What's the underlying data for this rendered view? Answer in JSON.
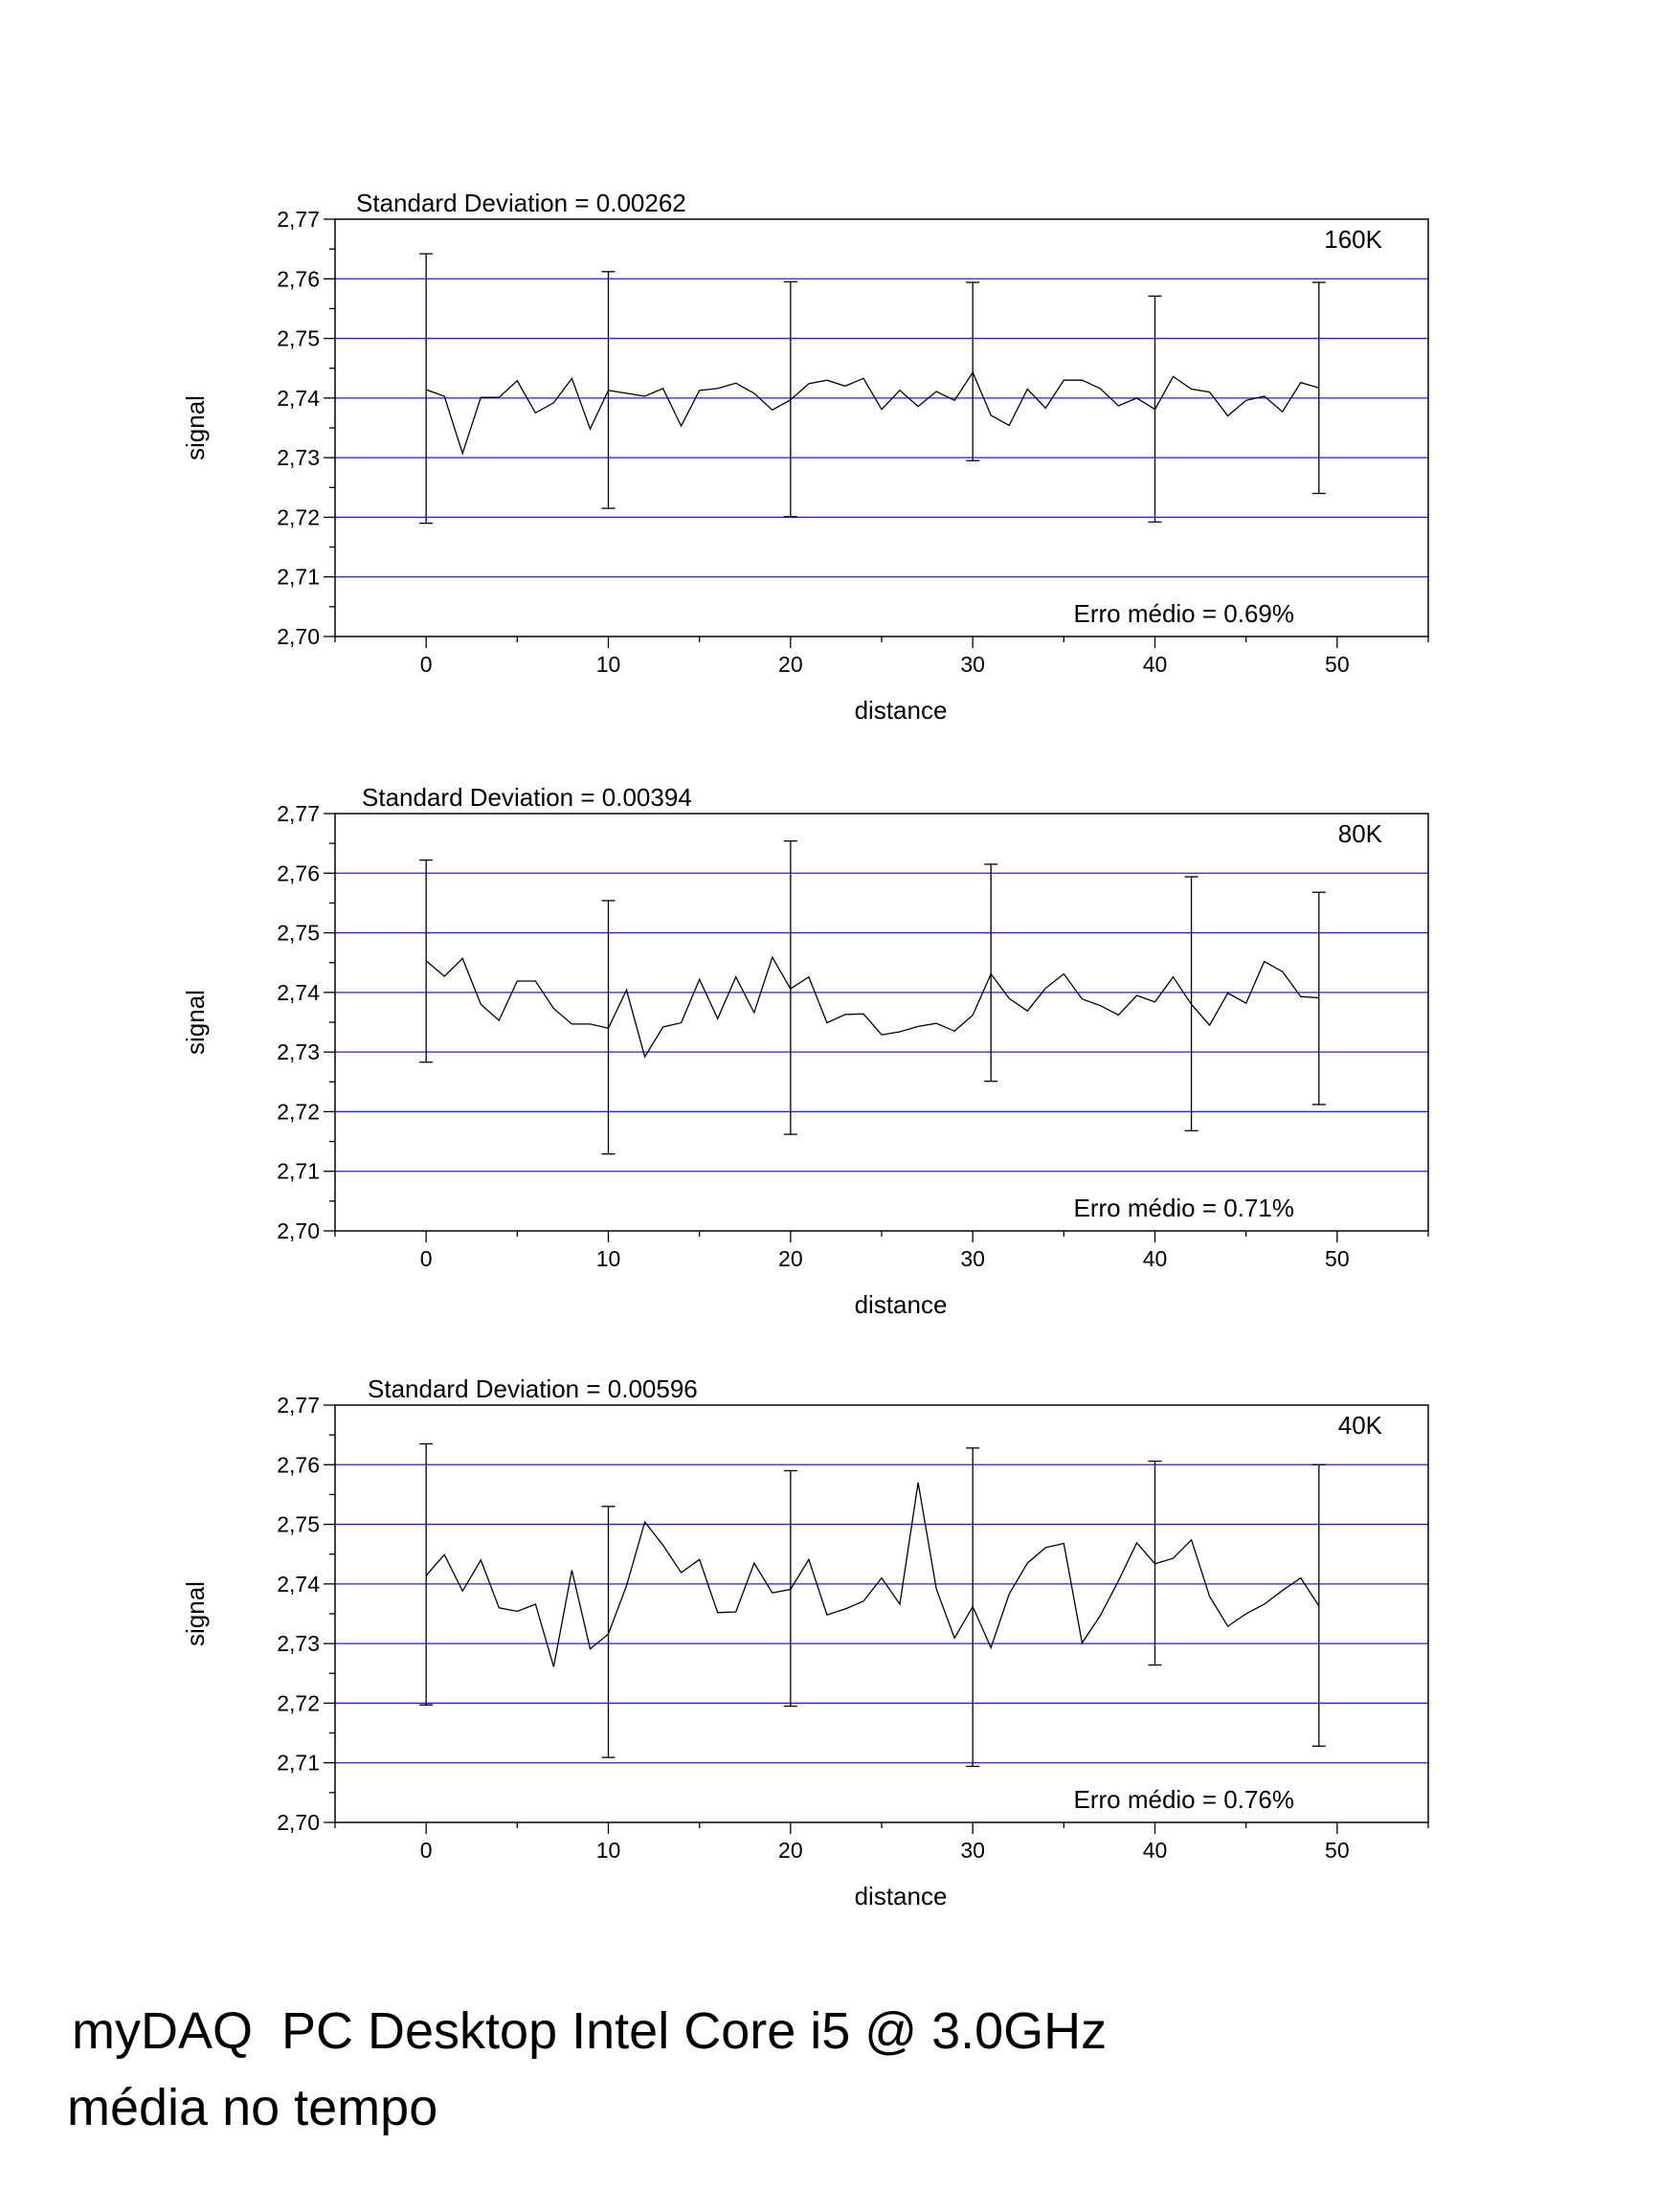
{
  "footer": {
    "line1": "myDAQ  PC Desktop Intel Core i5 @ 3.0GHz",
    "line2": "média no tempo"
  },
  "colors": {
    "grid": "#2020d0",
    "line": "#000000",
    "frame": "#000000"
  },
  "chart_data": [
    {
      "type": "line",
      "title": "Standard Deviation = 0.00262",
      "corner_label": "160K",
      "annotation": "Erro médio = 0.69%",
      "xlabel": "distance",
      "ylabel": "signal",
      "xlim": [
        -5,
        55
      ],
      "ylim": [
        2.7,
        2.77
      ],
      "xticks": [
        0,
        10,
        20,
        30,
        40,
        50
      ],
      "yticks": [
        "2,70",
        "2,71",
        "2,72",
        "2,73",
        "2,74",
        "2,75",
        "2,76",
        "2,77"
      ],
      "grid": "horizontal",
      "series": [
        {
          "x": [
            0,
            1,
            2,
            3,
            4,
            5,
            6,
            7,
            8,
            9,
            10,
            11,
            12,
            13,
            14,
            15,
            16,
            17,
            18,
            19,
            20,
            21,
            22,
            23,
            24,
            25,
            26,
            27,
            28,
            29,
            30,
            31,
            32,
            33,
            34,
            35,
            36,
            37,
            38,
            39,
            40,
            41,
            42,
            43,
            44,
            45,
            46,
            47,
            48,
            49
          ],
          "values": [
            2.7414,
            2.7403,
            2.7307,
            2.7401,
            2.7401,
            2.7429,
            2.7375,
            2.7392,
            2.7433,
            2.7348,
            2.7413,
            2.7408,
            2.7403,
            2.7416,
            2.7353,
            2.7413,
            2.7416,
            2.7425,
            2.7408,
            2.738,
            2.7397,
            2.7424,
            2.743,
            2.742,
            2.7433,
            2.7381,
            2.7413,
            2.7386,
            2.7411,
            2.7396,
            2.7443,
            2.7371,
            2.7354,
            2.7415,
            2.7383,
            2.743,
            2.743,
            2.7416,
            2.7387,
            2.74,
            2.7381,
            2.7436,
            2.7415,
            2.741,
            2.737,
            2.7396,
            2.7403,
            2.7377,
            2.7426,
            2.7417
          ]
        }
      ],
      "error_bars": [
        {
          "x": 0,
          "low": 2.719,
          "high": 2.7642
        },
        {
          "x": 10,
          "low": 2.7215,
          "high": 2.7612
        },
        {
          "x": 20,
          "low": 2.7201,
          "high": 2.7595
        },
        {
          "x": 30,
          "low": 2.7295,
          "high": 2.7594
        },
        {
          "x": 40,
          "low": 2.7192,
          "high": 2.7571
        },
        {
          "x": 49,
          "low": 2.724,
          "high": 2.7594
        }
      ]
    },
    {
      "type": "line",
      "title": "Standard Deviation = 0.00394",
      "corner_label": "80K",
      "annotation": "Erro médio = 0.71%",
      "xlabel": "distance",
      "ylabel": "signal",
      "xlim": [
        -5,
        55
      ],
      "ylim": [
        2.7,
        2.77
      ],
      "xticks": [
        0,
        10,
        20,
        30,
        40,
        50
      ],
      "yticks": [
        "2,70",
        "2,71",
        "2,72",
        "2,73",
        "2,74",
        "2,75",
        "2,76",
        "2,77"
      ],
      "grid": "horizontal",
      "series": [
        {
          "x": [
            0,
            1,
            2,
            3,
            4,
            5,
            6,
            7,
            8,
            9,
            10,
            11,
            12,
            13,
            14,
            15,
            16,
            17,
            18,
            19,
            20,
            21,
            22,
            23,
            24,
            25,
            26,
            27,
            28,
            29,
            30,
            31,
            32,
            33,
            34,
            35,
            36,
            37,
            38,
            39,
            40,
            41,
            42,
            43,
            44,
            45,
            46,
            47,
            48,
            49
          ],
          "values": [
            2.7453,
            2.7427,
            2.7457,
            2.738,
            2.7353,
            2.7419,
            2.7419,
            2.7373,
            2.7347,
            2.7347,
            2.734,
            2.7404,
            2.7292,
            2.7342,
            2.7349,
            2.7422,
            2.7356,
            2.7426,
            2.7366,
            2.7459,
            2.7406,
            2.7426,
            2.7349,
            2.7363,
            2.7364,
            2.7329,
            2.7334,
            2.7343,
            2.7348,
            2.7335,
            2.7362,
            2.7431,
            2.739,
            2.7369,
            2.7407,
            2.7431,
            2.7389,
            2.7378,
            2.7362,
            2.7395,
            2.7384,
            2.7426,
            2.738,
            2.7345,
            2.7399,
            2.7382,
            2.7452,
            2.7435,
            2.7393,
            2.7391
          ]
        }
      ],
      "error_bars": [
        {
          "x": 0,
          "low": 2.7283,
          "high": 2.7622
        },
        {
          "x": 10,
          "low": 2.7129,
          "high": 2.7554
        },
        {
          "x": 20,
          "low": 2.7162,
          "high": 2.7654
        },
        {
          "x": 31,
          "low": 2.7251,
          "high": 2.7615
        },
        {
          "x": 42,
          "low": 2.7168,
          "high": 2.7594
        },
        {
          "x": 49,
          "low": 2.7212,
          "high": 2.7568
        }
      ]
    },
    {
      "type": "line",
      "title": "Standard Deviation = 0.00596",
      "corner_label": "40K",
      "annotation": "Erro médio = 0.76%",
      "xlabel": "distance",
      "ylabel": "signal",
      "xlim": [
        -5,
        55
      ],
      "ylim": [
        2.7,
        2.77
      ],
      "xticks": [
        0,
        10,
        20,
        30,
        40,
        50
      ],
      "yticks": [
        "2,70",
        "2,71",
        "2,72",
        "2,73",
        "2,74",
        "2,75",
        "2,76",
        "2,77"
      ],
      "grid": "horizontal",
      "series": [
        {
          "x": [
            0,
            1,
            2,
            3,
            4,
            5,
            6,
            7,
            8,
            9,
            10,
            11,
            12,
            13,
            14,
            15,
            16,
            17,
            18,
            19,
            20,
            21,
            22,
            23,
            24,
            25,
            26,
            27,
            28,
            29,
            30,
            31,
            32,
            33,
            34,
            35,
            36,
            37,
            38,
            39,
            40,
            41,
            42,
            43,
            44,
            45,
            46,
            47,
            48,
            49
          ],
          "values": [
            2.7414,
            2.7449,
            2.7388,
            2.744,
            2.736,
            2.7354,
            2.7366,
            2.7261,
            2.7423,
            2.7291,
            2.7316,
            2.7397,
            2.7504,
            2.7465,
            2.7419,
            2.7441,
            2.7352,
            2.7353,
            2.7435,
            2.7385,
            2.7391,
            2.7441,
            2.7348,
            2.7358,
            2.7371,
            2.741,
            2.7366,
            2.757,
            2.7392,
            2.7309,
            2.7362,
            2.7293,
            2.7383,
            2.7435,
            2.7461,
            2.7468,
            2.7301,
            2.7347,
            2.7405,
            2.7469,
            2.7434,
            2.7443,
            2.7474,
            2.7379,
            2.7329,
            2.735,
            2.7366,
            2.7389,
            2.741,
            2.7363
          ]
        }
      ],
      "error_bars": [
        {
          "x": 0,
          "low": 2.7197,
          "high": 2.7635
        },
        {
          "x": 10,
          "low": 2.7109,
          "high": 2.753
        },
        {
          "x": 20,
          "low": 2.7195,
          "high": 2.759
        },
        {
          "x": 30,
          "low": 2.7094,
          "high": 2.7628
        },
        {
          "x": 40,
          "low": 2.7264,
          "high": 2.7606
        },
        {
          "x": 49,
          "low": 2.7128,
          "high": 2.76
        }
      ]
    }
  ]
}
